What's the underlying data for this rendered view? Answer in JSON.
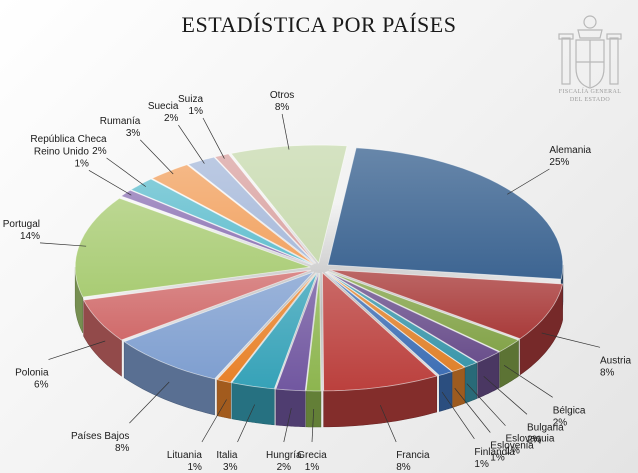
{
  "header": {
    "title": "ESTADÍSTICA POR PAÍSES",
    "logo_caption_line1": "FISCALÍA GENERAL",
    "logo_caption_line2": "DEL ESTADO"
  },
  "chart_data": {
    "type": "pie",
    "title": "ESTADÍSTICA POR PAÍSES",
    "three_d": true,
    "exploded": true,
    "slices": [
      {
        "name": "Alemania",
        "pct_label": "25%",
        "value": 25,
        "color": "#3d6592"
      },
      {
        "name": "Austria",
        "pct_label": "8%",
        "value": 8,
        "color": "#a93b3a"
      },
      {
        "name": "Bélgica",
        "pct_label": "2%",
        "value": 2,
        "color": "#84a44a"
      },
      {
        "name": "Bulgaria",
        "pct_label": "2%",
        "value": 2,
        "color": "#6a4f8c"
      },
      {
        "name": "Eslovaquia",
        "pct_label": "1%",
        "value": 1,
        "color": "#3b97ab"
      },
      {
        "name": "Eslovenia",
        "pct_label": "1%",
        "value": 1,
        "color": "#e0822c"
      },
      {
        "name": "Finlandia",
        "pct_label": "1%",
        "value": 1,
        "color": "#3e6fb5"
      },
      {
        "name": "Francia",
        "pct_label": "8%",
        "value": 8,
        "color": "#bb403d"
      },
      {
        "name": "Grecia",
        "pct_label": "1%",
        "value": 1,
        "color": "#8db54f"
      },
      {
        "name": "Hungría",
        "pct_label": "2%",
        "value": 2,
        "color": "#7157a0"
      },
      {
        "name": "Italia",
        "pct_label": "3%",
        "value": 3,
        "color": "#36a2b8"
      },
      {
        "name": "Lituania",
        "pct_label": "1%",
        "value": 1,
        "color": "#e8822a"
      },
      {
        "name": "Países Bajos",
        "pct_label": "8%",
        "value": 8,
        "color": "#7f9fd0"
      },
      {
        "name": "Polonia",
        "pct_label": "6%",
        "value": 6,
        "color": "#d06a6a"
      },
      {
        "name": "Portugal",
        "pct_label": "14%",
        "value": 14,
        "color": "#a9cc74"
      },
      {
        "name": "Reino Unido",
        "pct_label": "1%",
        "value": 1,
        "color": "#8f76b6"
      },
      {
        "name": "República Checa",
        "pct_label": "2%",
        "value": 2,
        "color": "#63bfcf"
      },
      {
        "name": "Rumanía",
        "pct_label": "3%",
        "value": 3,
        "color": "#f2a464"
      },
      {
        "name": "Suecia",
        "pct_label": "2%",
        "value": 2,
        "color": "#a9bbdb"
      },
      {
        "name": "Suiza",
        "pct_label": "1%",
        "value": 1,
        "color": "#dba6a5"
      },
      {
        "name": "Otros",
        "pct_label": "8%",
        "value": 8,
        "color": "#c9dbb1"
      }
    ]
  }
}
